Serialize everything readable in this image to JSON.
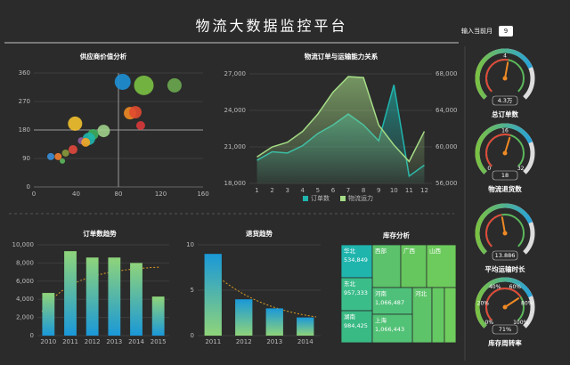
{
  "header": {
    "title": "物流大数据监控平台",
    "month_label": "输入当前月",
    "month": "9"
  },
  "chart_data": [
    {
      "type": "scatter",
      "title": "供应商价值分析",
      "x": [
        84,
        104,
        133,
        91,
        96,
        39,
        101,
        66,
        56,
        52,
        45,
        49,
        37,
        30,
        23,
        16,
        27
      ],
      "y": [
        332,
        321,
        321,
        233,
        236,
        200,
        194,
        177,
        166,
        152,
        146,
        141,
        118,
        107,
        96,
        96,
        82
      ],
      "sizes": [
        9,
        11,
        8,
        7,
        7,
        8,
        5,
        7,
        6,
        7,
        4,
        5,
        5,
        4,
        4,
        4,
        3
      ],
      "colors": [
        "#1e90d6",
        "#7ac143",
        "#6aa84f",
        "#f08a24",
        "#e04a2f",
        "#f2c12e",
        "#d9383a",
        "#9fd08a",
        "#3cae5c",
        "#1fb5ad",
        "#8e5ea2",
        "#f5a623",
        "#e2483d",
        "#8a9a3b",
        "#ef7d31",
        "#3a8fd8",
        "#5cb85c"
      ],
      "xlim": [
        0,
        160
      ],
      "xticks": [
        0,
        40,
        80,
        120,
        160
      ],
      "ylim": [
        0,
        360
      ],
      "yticks": [
        0,
        90,
        180,
        270,
        360
      ],
      "reference_lines": {
        "x": 80,
        "y": 180
      }
    },
    {
      "type": "line",
      "title": "物流订单与运输能力关系",
      "x": [
        1,
        2,
        3,
        4,
        5,
        6,
        7,
        8,
        9,
        10,
        11,
        12
      ],
      "xlim": [
        0.5,
        12.5
      ],
      "xticks": [
        1,
        2,
        3,
        4,
        5,
        6,
        7,
        8,
        9,
        10,
        11,
        12
      ],
      "ylim": [
        18000,
        27000
      ],
      "yticks": [
        {
          "value": 18000,
          "label": "18,000"
        },
        {
          "value": 21000,
          "label": "21,000"
        },
        {
          "value": 24000,
          "label": "24,000"
        },
        {
          "value": 27000,
          "label": "27,000"
        }
      ],
      "y2lim": [
        56000,
        68000
      ],
      "y2ticks": [
        {
          "value": 56000,
          "label": "56,000"
        },
        {
          "value": 60000,
          "label": "60,000"
        },
        {
          "value": 64000,
          "label": "64,000"
        },
        {
          "value": 68000,
          "label": "68,000"
        }
      ],
      "legend": "bottom",
      "series": [
        {
          "name": "订单数",
          "color": "#1fb5ad",
          "values": [
            19900,
            20600,
            20500,
            21100,
            22100,
            22800,
            23700,
            22800,
            21500,
            26100,
            18600,
            19500
          ]
        },
        {
          "name": "物流运力",
          "color": "#a5dc86",
          "axis": "y2",
          "values": [
            58900,
            60000,
            60500,
            61700,
            63600,
            66000,
            67700,
            67600,
            62400,
            60200,
            58400,
            61700
          ]
        }
      ]
    },
    {
      "type": "bar",
      "title": "订单数趋势",
      "categories": [
        "2010",
        "2011",
        "2012",
        "2013",
        "2014",
        "2015"
      ],
      "values": [
        4700,
        9300,
        8600,
        8600,
        8000,
        4300
      ],
      "gradient": [
        "#8fd47a",
        "#1a98d8"
      ],
      "ylim": [
        0,
        10000
      ],
      "yticks": [
        0,
        {
          "value": 2000,
          "label": "2,000"
        },
        {
          "value": 4000,
          "label": "4,000"
        },
        {
          "value": 6000,
          "label": "6,000"
        },
        {
          "value": 8000,
          "label": "8,000"
        },
        {
          "value": 10000,
          "label": "10,000"
        }
      ]
    },
    {
      "type": "bar",
      "title": "退货趋势",
      "categories": [
        "2011",
        "2012",
        "2013",
        "2014"
      ],
      "values": [
        9,
        4,
        3,
        2
      ],
      "gradient": [
        "#1a98d8",
        "#8fd47a"
      ],
      "ylim": [
        0,
        10
      ],
      "yticks": [
        0,
        5,
        10
      ]
    },
    {
      "type": "treemap",
      "title": "库存分析",
      "cells": [
        {
          "name": "华北",
          "value": 534849,
          "value_label": "534,849",
          "color": "#1fb5ad"
        },
        {
          "name": "西部",
          "value": 800000,
          "color": "#5cc26b"
        },
        {
          "name": "广西",
          "value": 720000,
          "color": "#66c75f"
        },
        {
          "name": "山西",
          "value": 820000,
          "color": "#6ccb5c"
        },
        {
          "name": "东北",
          "value": 957333,
          "value_label": "957,333",
          "color": "#3bbd8a"
        },
        {
          "name": "河南",
          "value": 1066487,
          "value_label": "1,066,487",
          "color": "#4fc07a"
        },
        {
          "name": "河北",
          "value": 700000,
          "color": "#5ec46a"
        },
        {
          "name": null,
          "value": 500000,
          "color": "#64c863"
        },
        {
          "name": null,
          "value": 400000,
          "color": "#6fcd5e"
        },
        {
          "name": "湖南",
          "value": 984425,
          "value_label": "984,425",
          "color": "#39b984"
        },
        {
          "name": "上海",
          "value": 1066443,
          "value_label": "1,066,443",
          "color": "#52c276"
        }
      ]
    },
    {
      "type": "gauge",
      "title": "总订单数",
      "value": 4.3,
      "value_label": "4.3万",
      "min": 0,
      "max": 8,
      "ticks": [
        4
      ]
    },
    {
      "type": "gauge",
      "title": "物流退货数",
      "value": 18,
      "min": 0,
      "max": 32,
      "ticks": [
        0,
        16,
        32
      ]
    },
    {
      "type": "gauge",
      "title": "平均运输时长",
      "value": 13.886,
      "min": 0,
      "max": 30,
      "ticks": []
    },
    {
      "type": "gauge",
      "title": "库存周转率",
      "value": 71,
      "value_label": "71%",
      "min": 0,
      "max": 100,
      "ticks": [
        {
          "value": 0,
          "label": "0%"
        },
        {
          "value": 20,
          "label": "20%"
        },
        {
          "value": 40,
          "label": "40%"
        },
        {
          "value": 60,
          "label": "60%"
        },
        {
          "value": 80,
          "label": "80%"
        },
        {
          "value": 100,
          "label": "100%"
        }
      ]
    }
  ]
}
